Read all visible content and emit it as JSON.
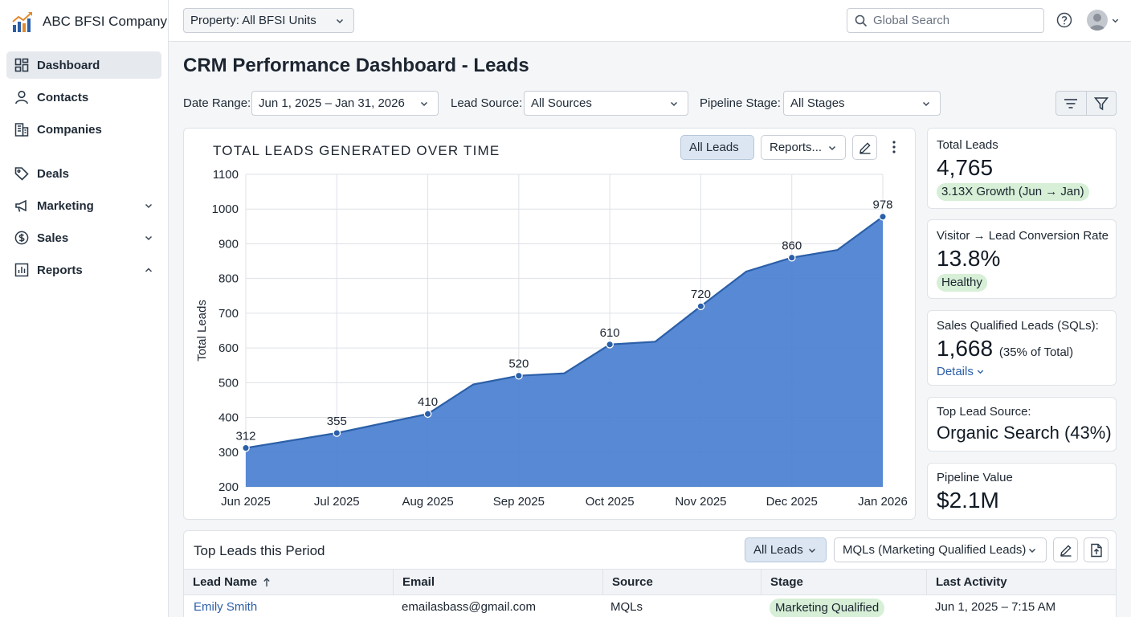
{
  "brand": {
    "name": "ABC BFSI Company"
  },
  "sidebar": {
    "items": [
      {
        "label": "Dashboard",
        "icon": "dashboard-icon",
        "active": true
      },
      {
        "label": "Contacts",
        "icon": "person-icon"
      },
      {
        "label": "Companies",
        "icon": "building-icon"
      },
      {
        "label": "Deals",
        "icon": "tag-icon"
      },
      {
        "label": "Marketing",
        "icon": "megaphone-icon",
        "chevron": "down"
      },
      {
        "label": "Sales",
        "icon": "dollar-icon",
        "chevron": "down"
      },
      {
        "label": "Reports",
        "icon": "report-icon",
        "chevron": "up"
      }
    ]
  },
  "topbar": {
    "property": "Property: All BFSI Units",
    "search_placeholder": "Global Search"
  },
  "page": {
    "title": "CRM Performance Dashboard - Leads"
  },
  "filters": {
    "date_label": "Date Range:",
    "date_value": "Jun 1, 2025 – Jan 31, 2026",
    "source_label": "Lead Source:",
    "source_value": "All Sources",
    "stage_label": "Pipeline Stage:",
    "stage_value": "All Stages"
  },
  "chart_card": {
    "title": "TOTAL LEADS GENERATED OVER TIME",
    "all_leads_button": "All Leads",
    "reports_button": "Reports..."
  },
  "chart_data": {
    "type": "area",
    "title": "TOTAL LEADS GENERATED OVER TIME",
    "xlabel": "",
    "ylabel": "Total Leads",
    "ylim": [
      200,
      1100
    ],
    "yticks": [
      200,
      300,
      400,
      500,
      600,
      700,
      800,
      900,
      1000,
      1100
    ],
    "categories": [
      "Jun 2025",
      "Jul 2025",
      "Aug 2025",
      "Sep 2025",
      "Oct 2025",
      "Nov 2025",
      "Dec 2025",
      "Jan 2026"
    ],
    "grid": true,
    "color": "#4a7fd0",
    "line_color": "#2b5fa8",
    "points": [
      {
        "x": 0,
        "y": 312,
        "label": "312"
      },
      {
        "x": 1,
        "y": 355,
        "label": "355"
      },
      {
        "x": 2,
        "y": 410,
        "label": "410"
      },
      {
        "x": 2.5,
        "y": 495,
        "label": ""
      },
      {
        "x": 3,
        "y": 520,
        "label": "520"
      },
      {
        "x": 3.5,
        "y": 527,
        "label": ""
      },
      {
        "x": 4,
        "y": 610,
        "label": "610"
      },
      {
        "x": 4.5,
        "y": 618,
        "label": ""
      },
      {
        "x": 5,
        "y": 720,
        "label": "720"
      },
      {
        "x": 5.5,
        "y": 820,
        "label": ""
      },
      {
        "x": 6,
        "y": 860,
        "label": "860"
      },
      {
        "x": 6.5,
        "y": 882,
        "label": ""
      },
      {
        "x": 7,
        "y": 978,
        "label": "978"
      }
    ]
  },
  "kpis": {
    "total_leads": {
      "label": "Total Leads",
      "value": "4,765",
      "badge": "3.13X Growth (Jun → Jan)"
    },
    "conversion": {
      "label": "Visitor → Lead Conversion Rate",
      "value": "13.8%",
      "badge": "Healthy"
    },
    "sqls": {
      "label": "Sales Qualified Leads (SQLs):",
      "value": "1,668",
      "sub": "(35% of Total)",
      "link": "Details"
    },
    "top_source": {
      "label": "Top Lead Source:",
      "value": "Organic Search (43%)"
    },
    "pipeline": {
      "label": "Pipeline Value",
      "value": "$2.1M"
    }
  },
  "table": {
    "title": "Top Leads this Period",
    "all_leads_button": "All Leads",
    "segment_select": "MQLs (Marketing Qualified Leads)",
    "columns": [
      "Lead Name",
      "Email",
      "Source",
      "Stage",
      "Last Activity"
    ],
    "rows": [
      {
        "name": "Emily Smith",
        "email": "emailasbass@gmail.com",
        "source": "MQLs",
        "stage": "Marketing Qualified",
        "last_activity": "Jun 1, 2025 – 7:15 AM"
      }
    ]
  },
  "colors": {
    "accent": "#2b5fa8",
    "success_bg": "#d6efd6"
  }
}
